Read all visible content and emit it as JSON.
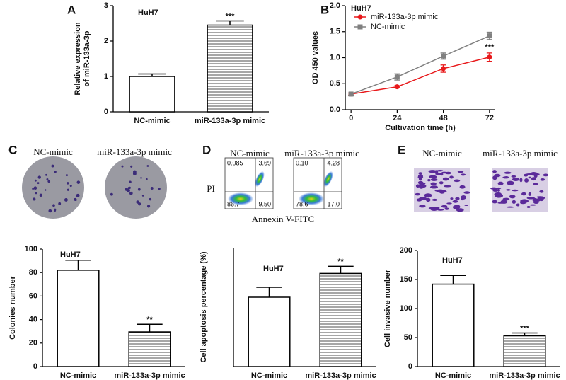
{
  "chart_data": [
    {
      "type": "bar",
      "panel_label": "A",
      "title": "HuH7",
      "ylabel": [
        "Relative expression",
        "of miR-133a-3p"
      ],
      "categories": [
        "NC-mimic",
        "miR-133a-3p mimic"
      ],
      "values": [
        1.0,
        2.45
      ],
      "errors": [
        0.07,
        0.12
      ],
      "value_annotations": [
        null,
        "***"
      ],
      "fills": [
        "plain",
        "hatch"
      ],
      "color": "#000000",
      "ylim": [
        0,
        3
      ],
      "yticks": [
        0,
        1,
        2,
        3
      ]
    },
    {
      "type": "line",
      "panel_label": "B",
      "title": "HuH7",
      "xlabel": "Cultivation time (h)",
      "ylabel": "OD 450 values",
      "x": [
        0,
        24,
        48,
        72
      ],
      "xlim": [
        -3,
        75
      ],
      "xticks": [
        0,
        24,
        48,
        72
      ],
      "ylim": [
        0,
        2.0
      ],
      "yticks": [
        {
          "value": 0,
          "label": "0.0"
        },
        0.5,
        {
          "value": 1.0,
          "label": "1.0"
        },
        1.5,
        {
          "value": 2.0,
          "label": "2.0"
        }
      ],
      "legend": "top-left",
      "series": [
        {
          "name": "miR-133a-3p mimic",
          "color": "#e8191b",
          "marker": "circle",
          "values": [
            0.3,
            0.44,
            0.79,
            1.01
          ],
          "errors": [
            0.02,
            0.02,
            0.07,
            0.08
          ],
          "value_annotations": [
            null,
            null,
            null,
            "***"
          ]
        },
        {
          "name": "NC-mimic",
          "color": "#808080",
          "marker": "square",
          "values": [
            0.3,
            0.63,
            1.03,
            1.42
          ],
          "errors": [
            0.02,
            0.06,
            0.06,
            0.07
          ]
        }
      ]
    },
    {
      "type": "bar",
      "title": "HuH7",
      "ylabel": "Colonies number",
      "categories": [
        "NC-mimic",
        "miR-133a-3p mimic"
      ],
      "values": [
        82,
        29.5
      ],
      "errors": [
        8.5,
        6.5
      ],
      "value_annotations": [
        null,
        "**"
      ],
      "fills": [
        "plain",
        "hatch"
      ],
      "color": "#000000",
      "ylim": [
        0,
        100
      ],
      "yticks": [
        0,
        20,
        40,
        60,
        80,
        100
      ]
    },
    {
      "type": "bar",
      "title": "HuH7",
      "ylabel": "Cell apoptosis percentage (%)",
      "categories": [
        "NC-mimic",
        "miR-133a-3p mimic"
      ],
      "values": [
        17.5,
        23.5
      ],
      "errors": [
        2.5,
        1.8
      ],
      "value_annotations": [
        null,
        "**"
      ],
      "fills": [
        "plain",
        "hatch"
      ],
      "color": "#000000",
      "ylim": [
        0,
        30
      ]
    },
    {
      "type": "bar",
      "title": "HuH7",
      "ylabel": "Cell invasive number",
      "categories": [
        "NC-mimic",
        "miR-133a-3p mimic"
      ],
      "values": [
        142,
        53
      ],
      "errors": [
        15,
        5
      ],
      "value_annotations": [
        null,
        "***"
      ],
      "fills": [
        "plain",
        "hatch"
      ],
      "color": "#000000",
      "ylim": [
        0,
        200
      ],
      "yticks": [
        0,
        50,
        100,
        150,
        200
      ]
    }
  ],
  "figure_panels": {
    "C": {
      "label": "C",
      "captions": [
        "NC-mimic",
        "miR-133a-3p mimic"
      ]
    },
    "D": {
      "label": "D",
      "captions": [
        "NC-mimic",
        "miR-133a-3p mimic"
      ],
      "y_axis_label": "PI",
      "x_axis_label": "Annexin V-FITC",
      "quadrants": [
        [
          "0.085",
          "3.69",
          "86.7",
          "9.50"
        ],
        [
          "0.10",
          "4.28",
          "78.6",
          "17.0"
        ]
      ]
    },
    "E": {
      "label": "E",
      "captions": [
        "NC-mimic",
        "miR-133a-3p mimic"
      ]
    }
  }
}
